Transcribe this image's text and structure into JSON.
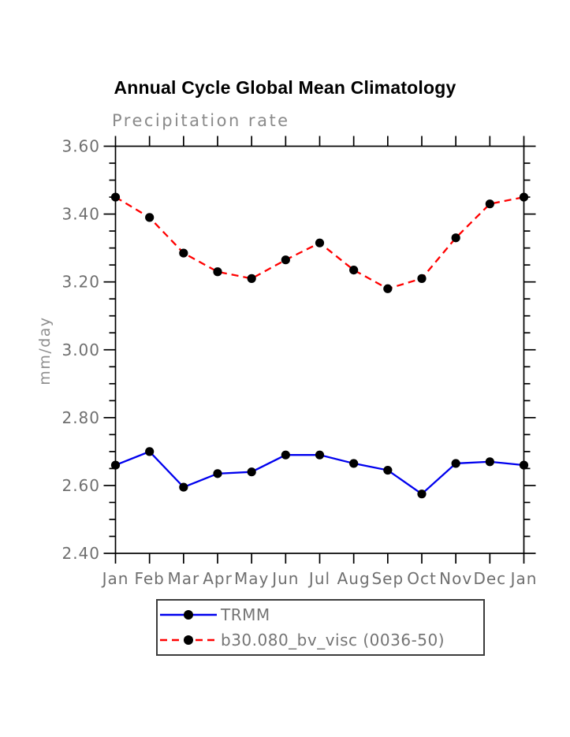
{
  "title": "Annual Cycle Global Mean Climatology",
  "subtitle": "Precipitation rate",
  "ylabel": "mm/day",
  "colors": {
    "trmm_line": "#0000ee",
    "model_line": "#ff0000",
    "marker": "#000000",
    "axis": "#000000",
    "tick_label_gray": "#6f6f6f",
    "subtitle_gray": "#8a8a8a",
    "legend_text_gray": "#757575",
    "background": "#ffffff"
  },
  "chart_data": {
    "type": "line",
    "title": "Annual Cycle Global Mean Climatology",
    "subtitle": "Precipitation rate",
    "xlabel": "",
    "ylabel": "mm/day",
    "categories": [
      "Jan",
      "Feb",
      "Mar",
      "Apr",
      "May",
      "Jun",
      "Jul",
      "Aug",
      "Sep",
      "Oct",
      "Nov",
      "Dec",
      "Jan"
    ],
    "ylim": [
      2.4,
      3.6
    ],
    "ytick_labels": [
      "3.60",
      "3.40",
      "3.20",
      "3.00",
      "2.80",
      "2.60",
      "2.40"
    ],
    "ytick_step": 0.2,
    "yminor_step": 0.05,
    "grid": false,
    "legend_position": "below-axis",
    "series": [
      {
        "name": "TRMM",
        "color": "#0000ee",
        "style": "solid",
        "marker": "circle",
        "marker_color": "#000000",
        "values": [
          2.66,
          2.7,
          2.595,
          2.635,
          2.64,
          2.69,
          2.69,
          2.665,
          2.645,
          2.575,
          2.665,
          2.67,
          2.66
        ]
      },
      {
        "name": "b30.080_bv_visc (0036-50)",
        "color": "#ff0000",
        "style": "dashed",
        "marker": "circle",
        "marker_color": "#000000",
        "values": [
          3.45,
          3.39,
          3.285,
          3.23,
          3.21,
          3.265,
          3.315,
          3.235,
          3.18,
          3.21,
          3.33,
          3.43,
          3.45
        ]
      }
    ]
  }
}
